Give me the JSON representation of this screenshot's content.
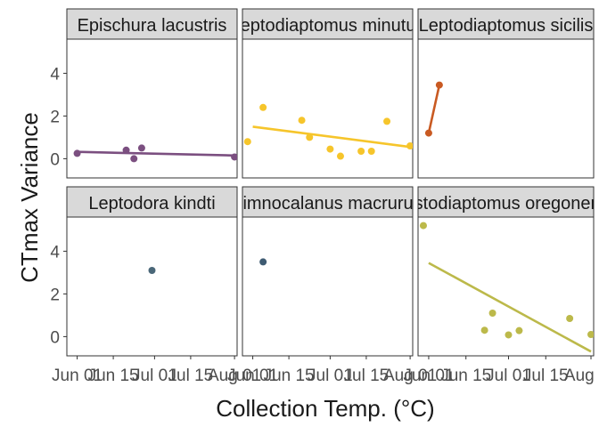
{
  "chart_data": {
    "type": "scatter",
    "xlabel": "Collection Temp. (°C)",
    "ylabel": "CTmax Variance",
    "x_ticks": [
      "Jun 01",
      "Jun 15",
      "Jul 01",
      "Jul 15",
      "Aug 01"
    ],
    "x_range": [
      "2022-05-28",
      "2022-08-02"
    ],
    "y_ticks": [
      0,
      2,
      4
    ],
    "ylim": [
      -0.9,
      5.6
    ],
    "grid": false,
    "legend": "none",
    "panels": [
      {
        "name": "Epischura lacustris",
        "color": "#7b4f80",
        "points": [
          {
            "x": "2022-06-01",
            "y": 0.25
          },
          {
            "x": "2022-06-20",
            "y": 0.4
          },
          {
            "x": "2022-06-23",
            "y": 0.0
          },
          {
            "x": "2022-06-26",
            "y": 0.5
          },
          {
            "x": "2022-08-01",
            "y": 0.08
          }
        ],
        "fit": [
          {
            "x": "2022-06-01",
            "y": 0.32
          },
          {
            "x": "2022-08-01",
            "y": 0.15
          }
        ]
      },
      {
        "name": "Leptodiaptomus minutus",
        "color": "#f6c52b",
        "points": [
          {
            "x": "2022-05-30",
            "y": 0.8
          },
          {
            "x": "2022-06-05",
            "y": 2.4
          },
          {
            "x": "2022-06-20",
            "y": 1.8
          },
          {
            "x": "2022-06-23",
            "y": 1.0
          },
          {
            "x": "2022-07-01",
            "y": 0.45
          },
          {
            "x": "2022-07-05",
            "y": 0.12
          },
          {
            "x": "2022-07-13",
            "y": 0.35
          },
          {
            "x": "2022-07-17",
            "y": 0.35
          },
          {
            "x": "2022-07-23",
            "y": 1.75
          },
          {
            "x": "2022-08-01",
            "y": 0.6
          }
        ],
        "fit": [
          {
            "x": "2022-06-01",
            "y": 1.5
          },
          {
            "x": "2022-08-01",
            "y": 0.55
          }
        ]
      },
      {
        "name": "Leptodiaptomus sicilis",
        "color": "#c95a22",
        "points": [
          {
            "x": "2022-06-01",
            "y": 1.2
          },
          {
            "x": "2022-06-05",
            "y": 3.45
          }
        ],
        "fit": [
          {
            "x": "2022-06-01",
            "y": 1.2
          },
          {
            "x": "2022-06-05",
            "y": 3.45
          }
        ]
      },
      {
        "name": "Leptodora kindti",
        "color": "#4a6778",
        "points": [
          {
            "x": "2022-06-30",
            "y": 3.1
          }
        ],
        "fit": []
      },
      {
        "name": "Limnocalanus macrurus",
        "color": "#3e5b72",
        "points": [
          {
            "x": "2022-06-05",
            "y": 3.5
          }
        ],
        "fit": []
      },
      {
        "name": "Skistodiaptomus oregonensis",
        "color": "#bcb94a",
        "points": [
          {
            "x": "2022-05-30",
            "y": 5.2
          },
          {
            "x": "2022-06-22",
            "y": 0.3
          },
          {
            "x": "2022-06-25",
            "y": 1.1
          },
          {
            "x": "2022-07-01",
            "y": 0.08
          },
          {
            "x": "2022-07-05",
            "y": 0.28
          },
          {
            "x": "2022-07-24",
            "y": 0.85
          },
          {
            "x": "2022-08-01",
            "y": 0.1
          }
        ],
        "fit": [
          {
            "x": "2022-06-01",
            "y": 3.45
          },
          {
            "x": "2022-08-01",
            "y": -0.7
          }
        ]
      }
    ]
  }
}
